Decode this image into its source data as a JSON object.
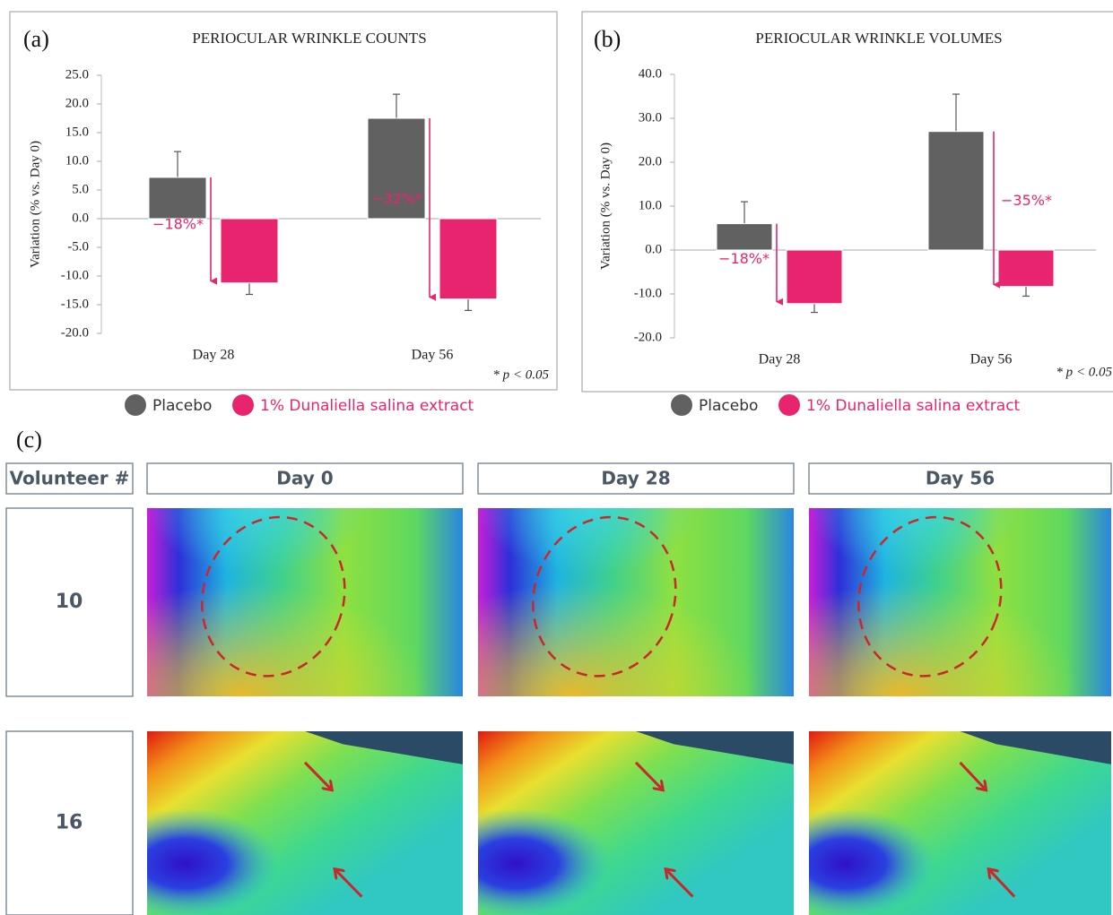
{
  "chart_data": [
    {
      "type": "bar",
      "panel": "(a)",
      "title": "PERIOCULAR WRINKLE COUNTS",
      "y_label": "Variation (% vs. Day 0)",
      "categories": [
        "Day 28",
        "Day 56"
      ],
      "series": [
        {
          "name": "Placebo",
          "color": "#616161",
          "values": [
            7.2,
            17.5
          ],
          "errors": [
            4.5,
            4.2
          ]
        },
        {
          "name": "1% Dunaliella salina extract",
          "color": "#e8246e",
          "values": [
            -11.2,
            -14.0
          ],
          "errors": [
            2.0,
            2.0
          ]
        }
      ],
      "annotations": [
        "−18%*",
        "−32%*"
      ],
      "note": "* p < 0.05",
      "ylim": [
        -20,
        25
      ],
      "yticks": [
        {
          "value": -20,
          "label": "-20.0"
        },
        {
          "value": -15,
          "label": "-15.0"
        },
        {
          "value": -10,
          "label": "-10.0"
        },
        {
          "value": -5,
          "label": "-5.0"
        },
        {
          "value": 0,
          "label": "0.0"
        },
        {
          "value": 5,
          "label": "5.0"
        },
        {
          "value": 10,
          "label": "10.0"
        },
        {
          "value": 15,
          "label": "15.0"
        },
        {
          "value": 20,
          "label": "20.0"
        },
        {
          "value": 25,
          "label": "25.0"
        }
      ]
    },
    {
      "type": "bar",
      "panel": "(b)",
      "title": "PERIOCULAR WRINKLE VOLUMES",
      "y_label": "Variation (% vs. Day 0)",
      "categories": [
        "Day 28",
        "Day 56"
      ],
      "series": [
        {
          "name": "Placebo",
          "color": "#616161",
          "values": [
            6.0,
            27.0
          ],
          "errors": [
            5.0,
            8.5
          ]
        },
        {
          "name": "1% Dunaliella salina extract",
          "color": "#e8246e",
          "values": [
            -12.2,
            -8.3
          ],
          "errors": [
            2.0,
            2.2
          ]
        }
      ],
      "annotations": [
        "−18%*",
        "−35%*"
      ],
      "note": "* p < 0.05",
      "ylim": [
        -20,
        40
      ],
      "yticks": [
        {
          "value": -20,
          "label": "-20.0"
        },
        {
          "value": -10,
          "label": "-10.0"
        },
        {
          "value": 0,
          "label": "0.0"
        },
        {
          "value": 10,
          "label": "10.0"
        },
        {
          "value": 20,
          "label": "20.0"
        },
        {
          "value": 30,
          "label": "30.0"
        },
        {
          "value": 40,
          "label": "40.0"
        }
      ]
    }
  ],
  "panel_c": {
    "label": "(c)",
    "header": [
      "Volunteer #",
      "Day 0",
      "Day 28",
      "Day 56"
    ],
    "rows": [
      "10",
      "16"
    ]
  }
}
